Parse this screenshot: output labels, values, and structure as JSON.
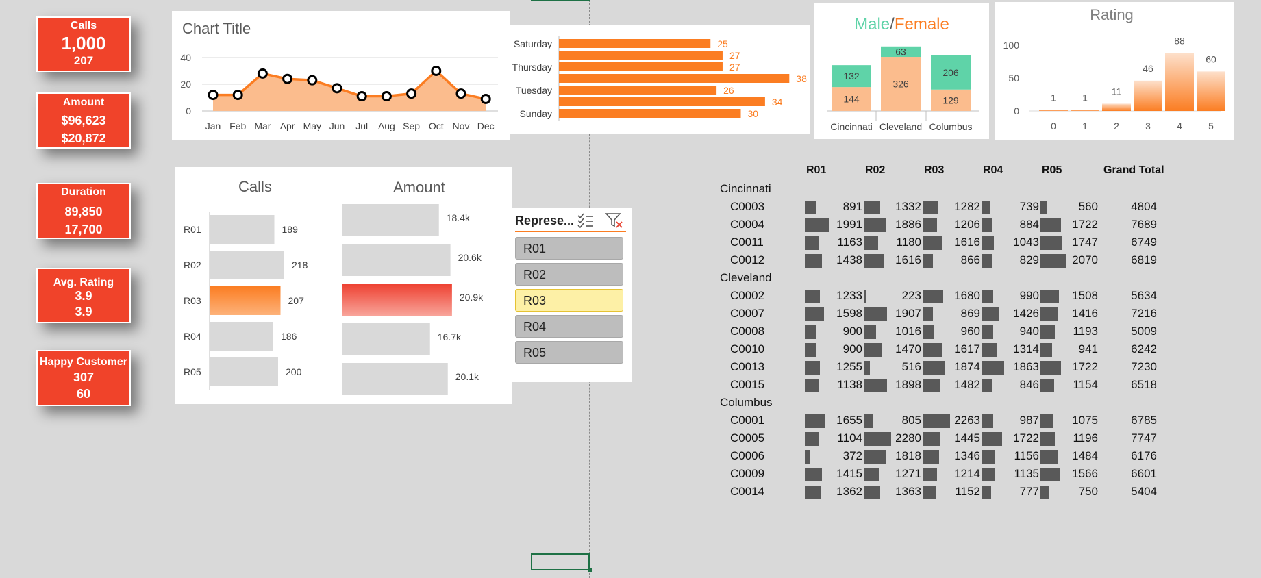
{
  "kpis": [
    {
      "title": "Calls",
      "total": "1,000",
      "selected": "207"
    },
    {
      "title": "Amount",
      "total": "$96,623",
      "selected": "$20,872"
    },
    {
      "title": "Duration",
      "total": "89,850",
      "selected": "17,700"
    },
    {
      "title": "Avg. Rating",
      "total": "3.9",
      "selected": "3.9"
    },
    {
      "title": "Happy Customer",
      "total": "307",
      "selected": "60"
    }
  ],
  "colors": {
    "accent": "#f0432a",
    "orange": "#fb7d22",
    "teal": "#5fd3a8",
    "peach": "#fbbc8d",
    "grey_bar": "#d9d9d9",
    "pivot_bar": "#595959"
  },
  "chart_data": [
    {
      "type": "line",
      "title": "Chart Title",
      "categories": [
        "Jan",
        "Feb",
        "Mar",
        "Apr",
        "May",
        "Jun",
        "Jul",
        "Aug",
        "Sep",
        "Oct",
        "Nov",
        "Dec"
      ],
      "values": [
        12,
        12,
        28,
        24,
        23,
        17,
        11,
        11,
        13,
        30,
        13,
        9
      ],
      "yticks": [
        0,
        20,
        40
      ],
      "ylim": [
        0,
        40
      ]
    },
    {
      "type": "bar",
      "orientation": "horizontal",
      "categories": [
        "Saturday",
        "",
        "Thursday",
        "",
        "Tuesday",
        "",
        "Sunday"
      ],
      "values": [
        25,
        27,
        27,
        38,
        26,
        34,
        30
      ],
      "xlim": [
        0,
        40
      ]
    },
    {
      "type": "bar",
      "stacked": true,
      "title_male": "Male",
      "title_sep": "/",
      "title_female": "Female",
      "categories": [
        "Cincinnati",
        "Cleveland",
        "Columbus"
      ],
      "series": [
        {
          "name": "Female",
          "values": [
            144,
            326,
            129
          ]
        },
        {
          "name": "Male",
          "values": [
            132,
            63,
            206
          ]
        }
      ]
    },
    {
      "type": "bar",
      "title": "Rating",
      "categories": [
        "0",
        "1",
        "2",
        "3",
        "4",
        "5"
      ],
      "values": [
        1,
        1,
        11,
        46,
        88,
        60
      ],
      "yticks": [
        0,
        50,
        100
      ],
      "ylim": [
        0,
        100
      ]
    },
    {
      "type": "bar",
      "orientation": "horizontal",
      "title": "Calls",
      "categories": [
        "R01",
        "R02",
        "R03",
        "R04",
        "R05"
      ],
      "values": [
        189,
        218,
        207,
        186,
        200
      ],
      "labels": [
        "189",
        "218",
        "207",
        "186",
        "200"
      ],
      "highlight": "R03"
    },
    {
      "type": "bar",
      "orientation": "horizontal",
      "title": "Amount",
      "categories": [
        "R01",
        "R02",
        "R03",
        "R04",
        "R05"
      ],
      "values": [
        18.4,
        20.6,
        20.9,
        16.7,
        20.1
      ],
      "labels": [
        "18.4k",
        "20.6k",
        "20.9k",
        "16.7k",
        "20.1k"
      ],
      "highlight": "R03"
    }
  ],
  "slicer": {
    "title": "Represe...",
    "items": [
      "R01",
      "R02",
      "R03",
      "R04",
      "R05"
    ],
    "selected": "R03"
  },
  "pivot": {
    "headers": [
      "R01",
      "R02",
      "R03",
      "R04",
      "R05",
      "Grand Total"
    ],
    "groups": [
      {
        "name": "Cincinnati",
        "rows": [
          {
            "code": "C0003",
            "values": [
              891,
              1332,
              1282,
              739,
              560
            ],
            "total": "4804"
          },
          {
            "code": "C0004",
            "values": [
              1991,
              1886,
              1206,
              884,
              1722
            ],
            "total": "7689"
          },
          {
            "code": "C0011",
            "values": [
              1163,
              1180,
              1616,
              1043,
              1747
            ],
            "total": "6749"
          },
          {
            "code": "C0012",
            "values": [
              1438,
              1616,
              866,
              829,
              2070
            ],
            "total": "6819"
          }
        ]
      },
      {
        "name": "Cleveland",
        "rows": [
          {
            "code": "C0002",
            "values": [
              1233,
              223,
              1680,
              990,
              1508
            ],
            "total": "5634"
          },
          {
            "code": "C0007",
            "values": [
              1598,
              1907,
              869,
              1426,
              1416
            ],
            "total": "7216"
          },
          {
            "code": "C0008",
            "values": [
              900,
              1016,
              960,
              940,
              1193
            ],
            "total": "5009"
          },
          {
            "code": "C0010",
            "values": [
              900,
              1470,
              1617,
              1314,
              941
            ],
            "total": "6242"
          },
          {
            "code": "C0013",
            "values": [
              1255,
              516,
              1874,
              1863,
              1722
            ],
            "total": "7230"
          },
          {
            "code": "C0015",
            "values": [
              1138,
              1898,
              1482,
              846,
              1154
            ],
            "total": "6518"
          }
        ]
      },
      {
        "name": "Columbus",
        "rows": [
          {
            "code": "C0001",
            "values": [
              1655,
              805,
              2263,
              987,
              1075
            ],
            "total": "6785"
          },
          {
            "code": "C0005",
            "values": [
              1104,
              2280,
              1445,
              1722,
              1196
            ],
            "total": "7747"
          },
          {
            "code": "C0006",
            "values": [
              372,
              1818,
              1346,
              1156,
              1484
            ],
            "total": "6176"
          },
          {
            "code": "C0009",
            "values": [
              1415,
              1271,
              1214,
              1135,
              1566
            ],
            "total": "6601"
          },
          {
            "code": "C0014",
            "values": [
              1362,
              1363,
              1152,
              777,
              750
            ],
            "total": "5404"
          }
        ]
      }
    ]
  }
}
